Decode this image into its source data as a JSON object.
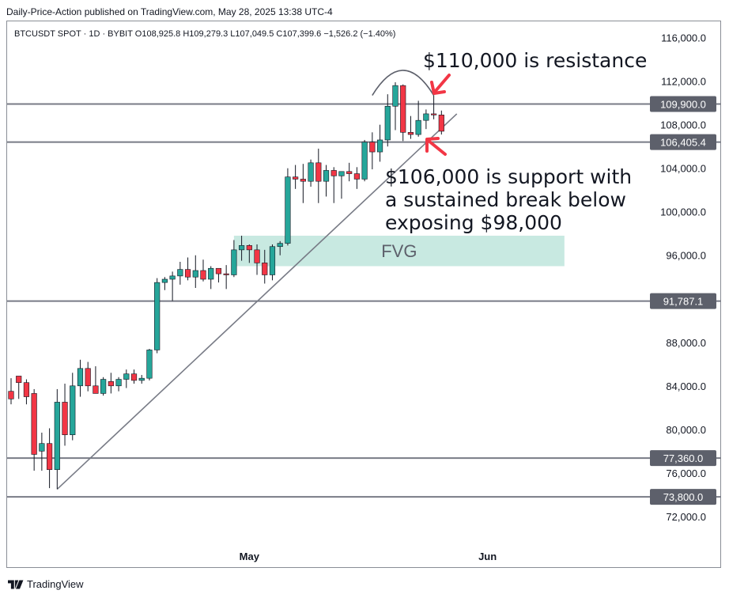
{
  "header": {
    "publisher_line": "Daily-Price-Action published on TradingView.com, May 28, 2025 13:38 UTC-4"
  },
  "chart_data": {
    "type": "candlestick",
    "symbol_line": "BTCUSDT SPOT · 1D · BYBIT  O108,925.8  H109,279.3  L107,049.5  C107,399.6  −1,526.2 (−1.40%)",
    "y_axis": {
      "range": [
        69300,
        117500
      ],
      "ticks": [
        116000,
        112000,
        108000,
        104000,
        100000,
        96000,
        88000,
        84000,
        80000,
        76000,
        72000
      ],
      "tick_labels": [
        "116,000.0",
        "112,000.0",
        "108,000.0",
        "104,000.0",
        "100,000.0",
        "96,000.0",
        "88,000.0",
        "84,000.0",
        "80,000.0",
        "76,000.0",
        "72,000.0"
      ]
    },
    "x_axis": {
      "labels": [
        {
          "text": "May",
          "index": 31
        },
        {
          "text": "Jun",
          "index": 62
        }
      ]
    },
    "colors": {
      "up": "#26a69a",
      "down": "#f23645",
      "line": "#787b86"
    },
    "candles": [
      [
        83500,
        84700,
        82300,
        82800
      ],
      [
        84900,
        84600,
        82800,
        84300
      ],
      [
        84300,
        84600,
        82300,
        83000
      ],
      [
        83300,
        83700,
        76200,
        77700
      ],
      [
        78000,
        79700,
        76200,
        78700
      ],
      [
        78700,
        80100,
        74600,
        76300
      ],
      [
        76300,
        83700,
        74500,
        82500
      ],
      [
        82500,
        84200,
        78500,
        79500
      ],
      [
        79500,
        85200,
        79000,
        84000
      ],
      [
        84000,
        86400,
        83000,
        85600
      ],
      [
        85600,
        86200,
        83500,
        84000
      ],
      [
        84000,
        85800,
        83300,
        83300
      ],
      [
        83300,
        84800,
        83100,
        84600
      ],
      [
        84400,
        85200,
        83300,
        84000
      ],
      [
        84000,
        84800,
        83500,
        84600
      ],
      [
        84600,
        85500,
        83800,
        85100
      ],
      [
        85100,
        85500,
        84200,
        84500
      ],
      [
        84500,
        85000,
        84200,
        84700
      ],
      [
        84700,
        87400,
        84500,
        87300
      ],
      [
        87300,
        93900,
        87000,
        93500
      ],
      [
        93500,
        94000,
        92800,
        93800
      ],
      [
        93800,
        94500,
        91800,
        94100
      ],
      [
        94100,
        95400,
        93300,
        94700
      ],
      [
        94700,
        95800,
        93700,
        94000
      ],
      [
        94000,
        96000,
        93000,
        94600
      ],
      [
        94600,
        95600,
        93600,
        93800
      ],
      [
        93800,
        95000,
        92900,
        94800
      ],
      [
        94800,
        94600,
        93500,
        94300
      ],
      [
        94300,
        95100,
        92900,
        94200
      ],
      [
        94200,
        97400,
        94000,
        96500
      ],
      [
        96500,
        97800,
        95500,
        96900
      ],
      [
        96900,
        97000,
        95300,
        96500
      ],
      [
        96500,
        97000,
        94200,
        95300
      ],
      [
        95300,
        96500,
        93400,
        94200
      ],
      [
        94200,
        97000,
        93700,
        96800
      ],
      [
        96800,
        97300,
        96000,
        97100
      ],
      [
        97100,
        104000,
        96900,
        103200
      ],
      [
        103200,
        104300,
        102100,
        103000
      ],
      [
        103000,
        104400,
        100800,
        102800
      ],
      [
        102800,
        104800,
        102300,
        104500
      ],
      [
        104500,
        105800,
        100800,
        102800
      ],
      [
        102800,
        104300,
        101400,
        103800
      ],
      [
        103800,
        104100,
        100800,
        103300
      ],
      [
        103300,
        103700,
        101200,
        103700
      ],
      [
        103700,
        104500,
        102800,
        103500
      ],
      [
        103500,
        104100,
        102100,
        103000
      ],
      [
        103000,
        106600,
        102800,
        106400
      ],
      [
        106400,
        107300,
        103900,
        105500
      ],
      [
        105500,
        108000,
        104600,
        106600
      ],
      [
        106600,
        110800,
        106000,
        109700
      ],
      [
        109700,
        111900,
        107500,
        111600
      ],
      [
        111600,
        111700,
        106500,
        107300
      ],
      [
        107300,
        108800,
        106700,
        107100
      ],
      [
        107100,
        110200,
        106900,
        108400
      ],
      [
        108400,
        109400,
        107600,
        109000
      ],
      [
        109000,
        110700,
        108500,
        108900
      ],
      [
        108900,
        109300,
        107100,
        107400
      ]
    ]
  },
  "levels": [
    {
      "price": 109900,
      "label": "109,900.0"
    },
    {
      "price": 106405.4,
      "label": "106,405.4"
    },
    {
      "price": 91787.1,
      "label": "91,787.1"
    },
    {
      "price": 77360,
      "label": "77,360.0"
    },
    {
      "price": 73800,
      "label": "73,800.0"
    }
  ],
  "fvg": {
    "label": "FVG",
    "color": "#c8e9e1",
    "from_index": 29,
    "to_index": 72,
    "price_low": 95000,
    "price_high": 97800
  },
  "trendline": {
    "from": {
      "index": 6,
      "price": 74500
    },
    "to": {
      "index": 58,
      "price": 109000
    }
  },
  "arc": {
    "from": {
      "index": 47,
      "price": 110700
    },
    "peak": {
      "index": 51,
      "price": 113000
    },
    "to": {
      "index": 55,
      "price": 110700
    }
  },
  "annotations": {
    "resistance": "$110,000 is resistance",
    "support_lines": [
      "$106,000 is support with",
      "a sustained break below",
      "exposing $98,000"
    ]
  },
  "arrows_color": "#f23645",
  "footer": {
    "brand": "TradingView"
  }
}
